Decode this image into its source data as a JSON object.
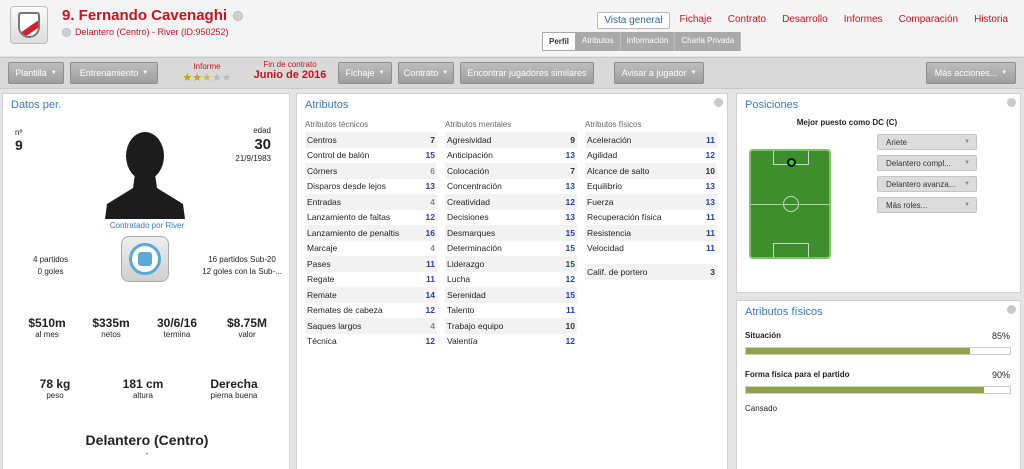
{
  "header": {
    "player_name": "9. Fernando Cavenaghi",
    "player_sub": "Delantero (Centro) - River (ID:950252)",
    "nav": [
      "Vista general",
      "Fichaje",
      "Contrato",
      "Desarrollo",
      "Informes",
      "Comparación",
      "Historia"
    ],
    "subtabs": [
      "Perfil",
      "Atributos",
      "Información",
      "Charla Privada"
    ]
  },
  "toolbar": {
    "plantilla": "Plantilla",
    "entrenamiento": "Entrenamiento",
    "informe_label": "Informe",
    "informe_stars": 2.5,
    "contrato_label": "Fin de contrato",
    "contrato_value": "Junio de 2016",
    "fichaje": "Fichaje",
    "contrato": "Contrato",
    "encontrar": "Encontrar jugadores similares",
    "avisar": "Avisar a jugador",
    "mas": "Más acciones..."
  },
  "datos": {
    "title": "Datos per.",
    "num_label": "nº",
    "num_value": "9",
    "age_label": "edad",
    "age_value": "30",
    "dob": "21/9/1983",
    "contratado": "Contratado por River",
    "intl_left": [
      "4 partidos",
      "0 goles"
    ],
    "intl_right": [
      "16 partidos Sub-20",
      "12 goles con la Sub-..."
    ],
    "money": [
      {
        "v": "$510m",
        "l": "al mes"
      },
      {
        "v": "$335m",
        "l": "netos"
      },
      {
        "v": "30/6/16",
        "l": "termina"
      },
      {
        "v": "$8.75M",
        "l": "valor"
      }
    ],
    "phys": [
      {
        "v": "78 kg",
        "l": "peso"
      },
      {
        "v": "181 cm",
        "l": "altura"
      },
      {
        "v": "Derecha",
        "l": "pierna buena"
      }
    ],
    "position": "Delantero (Centro)",
    "position_sub": "-"
  },
  "atributos": {
    "title": "Atributos",
    "tecnicos_hdr": "Atributos técnicos",
    "mentales_hdr": "Atributos mentales",
    "fisicos_hdr": "Atributos físicos",
    "tecnicos": [
      [
        "Centros",
        7
      ],
      [
        "Control de balón",
        15
      ],
      [
        "Córners",
        6
      ],
      [
        "Disparos desde lejos",
        13
      ],
      [
        "Entradas",
        4
      ],
      [
        "Lanzamiento de faltas",
        12
      ],
      [
        "Lanzamiento de penaltis",
        16
      ],
      [
        "Marcaje",
        4
      ],
      [
        "Pases",
        11
      ],
      [
        "Regate",
        11
      ],
      [
        "Remate",
        14
      ],
      [
        "Remates de cabeza",
        12
      ],
      [
        "Saques largos",
        4
      ],
      [
        "Técnica",
        12
      ]
    ],
    "mentales": [
      [
        "Agresividad",
        9
      ],
      [
        "Anticipación",
        13
      ],
      [
        "Colocación",
        7
      ],
      [
        "Concentración",
        13
      ],
      [
        "Creatividad",
        12
      ],
      [
        "Decisiones",
        13
      ],
      [
        "Desmarques",
        15
      ],
      [
        "Determinación",
        15
      ],
      [
        "Liderazgo",
        15
      ],
      [
        "Lucha",
        12
      ],
      [
        "Serenidad",
        15
      ],
      [
        "Talento",
        11
      ],
      [
        "Trabajo equipo",
        10
      ],
      [
        "Valentía",
        12
      ]
    ],
    "fisicos": [
      [
        "Aceleración",
        11
      ],
      [
        "Agilidad",
        12
      ],
      [
        "Alcance de salto",
        10
      ],
      [
        "Equilibrio",
        13
      ],
      [
        "Fuerza",
        13
      ],
      [
        "Recuperación física",
        11
      ],
      [
        "Resistencia",
        11
      ],
      [
        "Velocidad",
        11
      ]
    ],
    "portero": [
      "Calif. de portero",
      3
    ]
  },
  "posiciones": {
    "title": "Posiciones",
    "best": "Mejor puesto como DC (C)",
    "roles": [
      "Ariete",
      "Delantero compl...",
      "Delantero avanza...",
      "Más roles..."
    ]
  },
  "fisicos_panel": {
    "title": "Atributos físicos",
    "situacion_label": "Situación",
    "situacion_value": "85%",
    "situacion_frac": 0.85,
    "forma_label": "Forma física para el partido",
    "forma_value": "90%",
    "forma_frac": 0.9,
    "cansado": "Cansado"
  }
}
